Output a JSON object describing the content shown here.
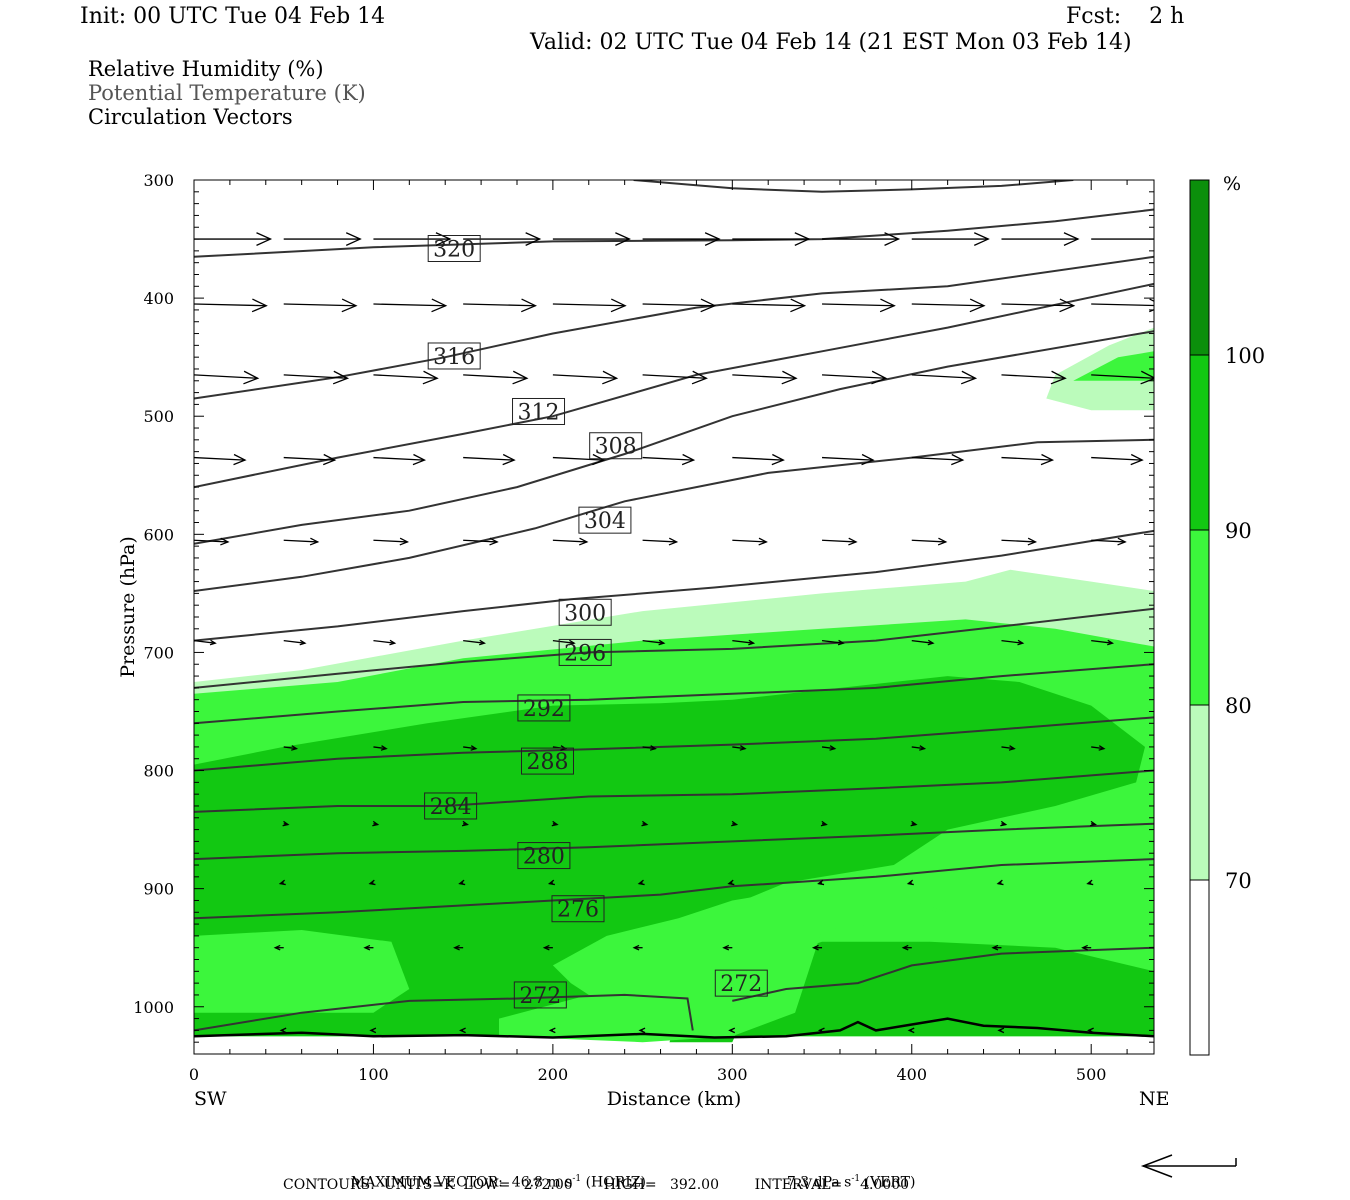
{
  "header": {
    "init": "Init: 00 UTC Tue 04 Feb 14",
    "fcst": "Fcst:    2 h",
    "valid": "Valid: 02 UTC Tue 04 Feb 14 (21 EST Mon 03 Feb 14)"
  },
  "legend": {
    "rh": "Relative Humidity (%)",
    "theta": "Potential Temperature (K)",
    "vectors": "Circulation Vectors"
  },
  "colors": {
    "rh_70_80": "#bbfbbb",
    "rh_80_90": "#3cf63c",
    "rh_90_100": "#12c812",
    "rh_100": "#0b8f0b",
    "contour": "#333333"
  },
  "chart_data": {
    "type": "cross-section",
    "xlabel": "Distance (km)",
    "ylabel": "Pressure (hPa)",
    "xlim": [
      0,
      535
    ],
    "ylim": [
      300,
      1040
    ],
    "x_ticks": [
      0,
      100,
      200,
      300,
      400,
      500
    ],
    "y_ticks": [
      300,
      400,
      500,
      600,
      700,
      800,
      900,
      1000
    ],
    "x_left_label": "SW",
    "x_right_label": "NE",
    "colorbar": {
      "unit": "%",
      "levels": [
        100,
        90,
        80,
        70
      ],
      "colors": [
        "#0b8f0b",
        "#12c812",
        "#3cf63c",
        "#bbfbbb",
        "#ffffff"
      ]
    },
    "rh_regions": [
      {
        "level": "70-80",
        "points": [
          [
            0,
            725
          ],
          [
            60,
            715
          ],
          [
            150,
            690
          ],
          [
            250,
            665
          ],
          [
            350,
            650
          ],
          [
            430,
            640
          ],
          [
            455,
            630
          ],
          [
            500,
            640
          ],
          [
            535,
            648
          ],
          [
            535,
            1025
          ],
          [
            0,
            1025
          ]
        ]
      },
      {
        "level": "80-90",
        "points": [
          [
            0,
            735
          ],
          [
            80,
            725
          ],
          [
            150,
            705
          ],
          [
            250,
            690
          ],
          [
            350,
            680
          ],
          [
            430,
            672
          ],
          [
            480,
            680
          ],
          [
            535,
            695
          ],
          [
            535,
            1025
          ],
          [
            0,
            1025
          ]
        ]
      },
      {
        "level": "90-100",
        "points": [
          [
            0,
            795
          ],
          [
            50,
            780
          ],
          [
            130,
            760
          ],
          [
            200,
            745
          ],
          [
            260,
            743
          ],
          [
            300,
            740
          ],
          [
            360,
            730
          ],
          [
            420,
            720
          ],
          [
            460,
            725
          ],
          [
            500,
            745
          ],
          [
            530,
            780
          ],
          [
            525,
            810
          ],
          [
            480,
            830
          ],
          [
            420,
            850
          ],
          [
            390,
            880
          ],
          [
            330,
            895
          ],
          [
            290,
            920
          ],
          [
            280,
            960
          ],
          [
            265,
            1030
          ],
          [
            300,
            1030
          ],
          [
            320,
            960
          ],
          [
            350,
            945
          ],
          [
            410,
            945
          ],
          [
            480,
            950
          ],
          [
            535,
            970
          ],
          [
            535,
            1025
          ],
          [
            0,
            1025
          ]
        ]
      },
      {
        "level": "80-90",
        "points": [
          [
            0,
            940
          ],
          [
            60,
            935
          ],
          [
            110,
            945
          ],
          [
            120,
            985
          ],
          [
            100,
            1005
          ],
          [
            0,
            1005
          ]
        ]
      },
      {
        "level": "80-90",
        "points": [
          [
            200,
            965
          ],
          [
            230,
            940
          ],
          [
            270,
            925
          ],
          [
            300,
            910
          ],
          [
            340,
            900
          ],
          [
            390,
            905
          ],
          [
            420,
            920
          ],
          [
            380,
            930
          ],
          [
            350,
            935
          ],
          [
            335,
            1005
          ],
          [
            300,
            1025
          ],
          [
            250,
            1030
          ],
          [
            170,
            1025
          ],
          [
            170,
            1010
          ],
          [
            220,
            990
          ],
          [
            210,
            980
          ]
        ]
      },
      {
        "level": "100",
        "points": [
          [
            520,
            465
          ],
          [
            510,
            468
          ],
          [
            530,
            440
          ],
          [
            535,
            440
          ],
          [
            535,
            465
          ]
        ]
      },
      {
        "level": "70-80",
        "points": [
          [
            475,
            485
          ],
          [
            480,
            465
          ],
          [
            510,
            440
          ],
          [
            535,
            425
          ],
          [
            535,
            495
          ],
          [
            500,
            495
          ]
        ]
      },
      {
        "level": "80-90",
        "points": [
          [
            490,
            470
          ],
          [
            515,
            450
          ],
          [
            535,
            445
          ],
          [
            535,
            470
          ]
        ]
      }
    ],
    "theta_contours": [
      {
        "label": "320",
        "points": [
          [
            0,
            365
          ],
          [
            100,
            357
          ],
          [
            200,
            352
          ],
          [
            300,
            351
          ],
          [
            350,
            350
          ],
          [
            420,
            343
          ],
          [
            480,
            335
          ],
          [
            535,
            325
          ]
        ],
        "label_at": [
          145,
          358
        ]
      },
      {
        "label": "316",
        "points": [
          [
            0,
            485
          ],
          [
            80,
            467
          ],
          [
            140,
            450
          ],
          [
            200,
            430
          ],
          [
            280,
            408
          ],
          [
            350,
            396
          ],
          [
            420,
            390
          ],
          [
            535,
            365
          ]
        ],
        "label_at": [
          145,
          449
        ]
      },
      {
        "label": "312",
        "points": [
          [
            0,
            560
          ],
          [
            80,
            535
          ],
          [
            150,
            515
          ],
          [
            200,
            500
          ],
          [
            280,
            465
          ],
          [
            350,
            445
          ],
          [
            420,
            425
          ],
          [
            535,
            388
          ]
        ],
        "label_at": [
          192,
          496
        ]
      },
      {
        "label": "308",
        "points": [
          [
            0,
            608
          ],
          [
            60,
            592
          ],
          [
            120,
            580
          ],
          [
            180,
            560
          ],
          [
            240,
            532
          ],
          [
            300,
            500
          ],
          [
            360,
            477
          ],
          [
            420,
            458
          ],
          [
            535,
            428
          ]
        ],
        "label_at": [
          235,
          525
        ]
      },
      {
        "label": "304",
        "points": [
          [
            0,
            648
          ],
          [
            60,
            636
          ],
          [
            120,
            620
          ],
          [
            190,
            595
          ],
          [
            240,
            572
          ],
          [
            320,
            548
          ],
          [
            400,
            535
          ],
          [
            470,
            522
          ],
          [
            535,
            520
          ]
        ],
        "label_at": [
          229,
          588
        ]
      },
      {
        "label": "300",
        "points": [
          [
            0,
            690
          ],
          [
            80,
            678
          ],
          [
            150,
            665
          ],
          [
            210,
            655
          ],
          [
            290,
            645
          ],
          [
            380,
            632
          ],
          [
            450,
            618
          ],
          [
            535,
            597
          ]
        ],
        "label_at": [
          218,
          666
        ]
      },
      {
        "label": "296",
        "points": [
          [
            0,
            730
          ],
          [
            80,
            718
          ],
          [
            150,
            708
          ],
          [
            220,
            700
          ],
          [
            300,
            697
          ],
          [
            380,
            690
          ],
          [
            450,
            678
          ],
          [
            535,
            663
          ]
        ],
        "label_at": [
          218,
          700
        ]
      },
      {
        "label": "292",
        "points": [
          [
            0,
            760
          ],
          [
            80,
            750
          ],
          [
            150,
            742
          ],
          [
            220,
            740
          ],
          [
            300,
            735
          ],
          [
            380,
            730
          ],
          [
            450,
            720
          ],
          [
            535,
            710
          ]
        ],
        "label_at": [
          195,
          747
        ]
      },
      {
        "label": "288",
        "points": [
          [
            0,
            800
          ],
          [
            80,
            790
          ],
          [
            150,
            785
          ],
          [
            220,
            782
          ],
          [
            300,
            778
          ],
          [
            380,
            773
          ],
          [
            450,
            765
          ],
          [
            535,
            755
          ]
        ],
        "label_at": [
          197,
          792
        ]
      },
      {
        "label": "284",
        "points": [
          [
            0,
            835
          ],
          [
            80,
            830
          ],
          [
            140,
            830
          ],
          [
            220,
            822
          ],
          [
            300,
            820
          ],
          [
            380,
            815
          ],
          [
            450,
            810
          ],
          [
            535,
            800
          ]
        ],
        "label_at": [
          143,
          830
        ]
      },
      {
        "label": "280",
        "points": [
          [
            0,
            875
          ],
          [
            80,
            870
          ],
          [
            150,
            868
          ],
          [
            220,
            865
          ],
          [
            300,
            860
          ],
          [
            380,
            855
          ],
          [
            450,
            850
          ],
          [
            535,
            845
          ]
        ],
        "label_at": [
          195,
          872
        ]
      },
      {
        "label": "276",
        "points": [
          [
            0,
            925
          ],
          [
            80,
            920
          ],
          [
            140,
            915
          ],
          [
            200,
            910
          ],
          [
            260,
            905
          ],
          [
            300,
            898
          ],
          [
            380,
            890
          ],
          [
            450,
            880
          ],
          [
            535,
            875
          ]
        ],
        "label_at": [
          214,
          917
        ]
      },
      {
        "label": "272",
        "points": [
          [
            0,
            1020
          ],
          [
            60,
            1005
          ],
          [
            120,
            995
          ],
          [
            180,
            993
          ],
          [
            240,
            990
          ],
          [
            275,
            993
          ],
          [
            278,
            1020
          ]
        ],
        "label_at": [
          193,
          990
        ]
      },
      {
        "label": "272",
        "points": [
          [
            300,
            995
          ],
          [
            330,
            985
          ],
          [
            370,
            980
          ],
          [
            400,
            965
          ],
          [
            450,
            955
          ],
          [
            535,
            950
          ]
        ],
        "label_at": [
          305,
          980
        ]
      }
    ],
    "theta_top_line": [
      [
        245,
        300
      ],
      [
        300,
        307
      ],
      [
        350,
        310
      ],
      [
        400,
        308
      ],
      [
        450,
        305
      ],
      [
        490,
        300
      ]
    ],
    "terrain": [
      [
        0,
        1025
      ],
      [
        60,
        1022
      ],
      [
        100,
        1025
      ],
      [
        150,
        1024
      ],
      [
        200,
        1026
      ],
      [
        250,
        1023
      ],
      [
        290,
        1026
      ],
      [
        330,
        1025
      ],
      [
        360,
        1020
      ],
      [
        370,
        1013
      ],
      [
        380,
        1020
      ],
      [
        400,
        1015
      ],
      [
        420,
        1010
      ],
      [
        440,
        1016
      ],
      [
        470,
        1018
      ],
      [
        500,
        1022
      ],
      [
        535,
        1025
      ]
    ],
    "vectors": [
      {
        "p": 350,
        "xs": [
          0,
          50,
          100,
          150,
          200,
          250,
          300,
          350,
          400,
          450,
          500,
          535
        ],
        "u": 0.9,
        "w": 0
      },
      {
        "p": 405,
        "xs": [
          0,
          50,
          100,
          150,
          200,
          250,
          300,
          350,
          400,
          450,
          500,
          535
        ],
        "u": 0.85,
        "w": 0.02
      },
      {
        "p": 465,
        "xs": [
          0,
          50,
          100,
          150,
          200,
          250,
          300,
          350,
          400,
          450,
          500
        ],
        "u": 0.75,
        "w": 0.04
      },
      {
        "p": 535,
        "xs": [
          0,
          50,
          100,
          150,
          200,
          250,
          300,
          350,
          400,
          450,
          500
        ],
        "u": 0.6,
        "w": 0.03
      },
      {
        "p": 605,
        "xs": [
          0,
          50,
          100,
          150,
          200,
          250,
          300,
          350,
          400,
          450,
          500
        ],
        "u": 0.4,
        "w": 0.02
      },
      {
        "p": 690,
        "xs": [
          0,
          50,
          100,
          150,
          200,
          250,
          300,
          350,
          400,
          450,
          500
        ],
        "u": 0.25,
        "w": 0.03
      },
      {
        "p": 780,
        "xs": [
          50,
          100,
          150,
          200,
          250,
          300,
          350,
          400,
          450,
          500
        ],
        "u": 0.15,
        "w": 0.02
      },
      {
        "p": 845,
        "xs": [
          50,
          100,
          150,
          200,
          250,
          300,
          350,
          400,
          450,
          500
        ],
        "u": 0.05,
        "w": 0.01
      },
      {
        "p": 895,
        "xs": [
          50,
          100,
          150,
          200,
          250,
          300,
          350,
          400,
          450,
          500
        ],
        "u": -0.04,
        "w": 0.01
      },
      {
        "p": 950,
        "xs": [
          50,
          100,
          150,
          200,
          250,
          300,
          350,
          400,
          450,
          500
        ],
        "u": -0.1,
        "w": 0
      },
      {
        "p": 1020,
        "xs": [
          50,
          100,
          150,
          200,
          250,
          300,
          350,
          400,
          450,
          500
        ],
        "u": -0.03,
        "w": 0
      }
    ]
  },
  "footer": {
    "max_vector_label": "MAXIMUM VECTOR:",
    "max_horiz": "46.8 m s",
    "horiz_unit": "(HORIZ)",
    "max_vert": "7.3 dPa s",
    "vert_unit": "(VERT)",
    "exp": "-1",
    "contours": "CONTOURS:  UNITS=K  LOW=   272.00       HIGH=   392.00        INTERVAL=    4.0000"
  }
}
